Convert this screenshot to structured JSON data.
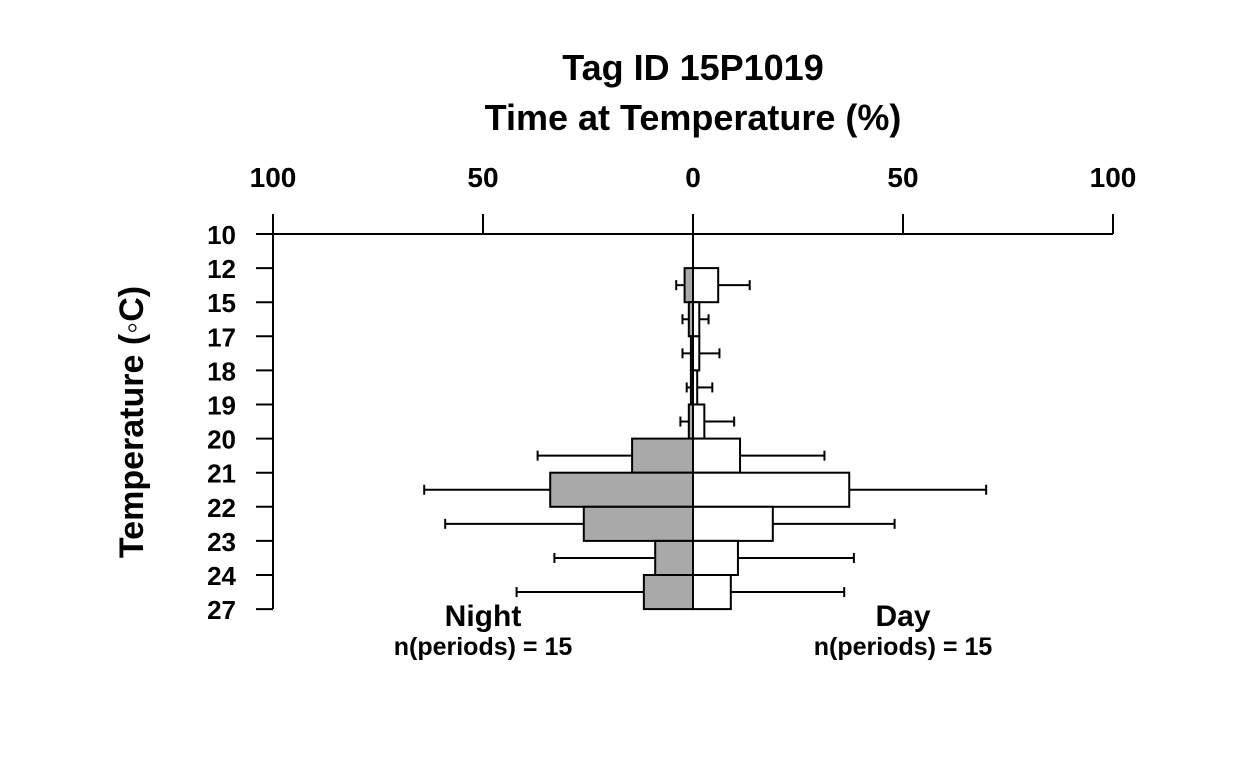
{
  "chart_data": {
    "type": "bar",
    "title": "Tag ID 15P1019",
    "subtitle": "Time at Temperature (%)",
    "ylabel": "Temperature (◦C)",
    "x_ticks": [
      100,
      50,
      0,
      50,
      100
    ],
    "xlim": [
      -100,
      100
    ],
    "temperature_bins": [
      "10",
      "12",
      "15",
      "17",
      "18",
      "19",
      "20",
      "21",
      "22",
      "23",
      "24",
      "27"
    ],
    "night_label": "Night",
    "night_n": "n(periods) = 15",
    "day_label": "Day",
    "day_n": "n(periods) = 15",
    "colors": {
      "night_fill": "#a9a9a9",
      "day_fill": "#ffffff",
      "stroke": "#000000"
    },
    "grid": false,
    "series": [
      {
        "name": "Night",
        "values": [
          0.0,
          2.0,
          1.0,
          0.5,
          0.5,
          1.0,
          14.5,
          34.0,
          26.0,
          9.0,
          11.7
        ],
        "err_low": [
          0.0,
          4.0,
          2.5,
          2.5,
          1.5,
          3.0,
          37.0,
          64.0,
          59.0,
          33.0,
          42.0
        ],
        "err_high": [
          0.0,
          2.0,
          1.0,
          0.5,
          0.5,
          1.0,
          14.5,
          34.0,
          26.0,
          9.0,
          11.7
        ]
      },
      {
        "name": "Day",
        "values": [
          0.0,
          6.0,
          1.5,
          1.5,
          1.0,
          2.7,
          11.2,
          37.2,
          19.0,
          10.7,
          9.0
        ],
        "err_high": [
          0.0,
          13.5,
          3.7,
          6.3,
          4.6,
          9.8,
          31.3,
          69.8,
          48.0,
          38.3,
          36.0
        ]
      }
    ]
  }
}
